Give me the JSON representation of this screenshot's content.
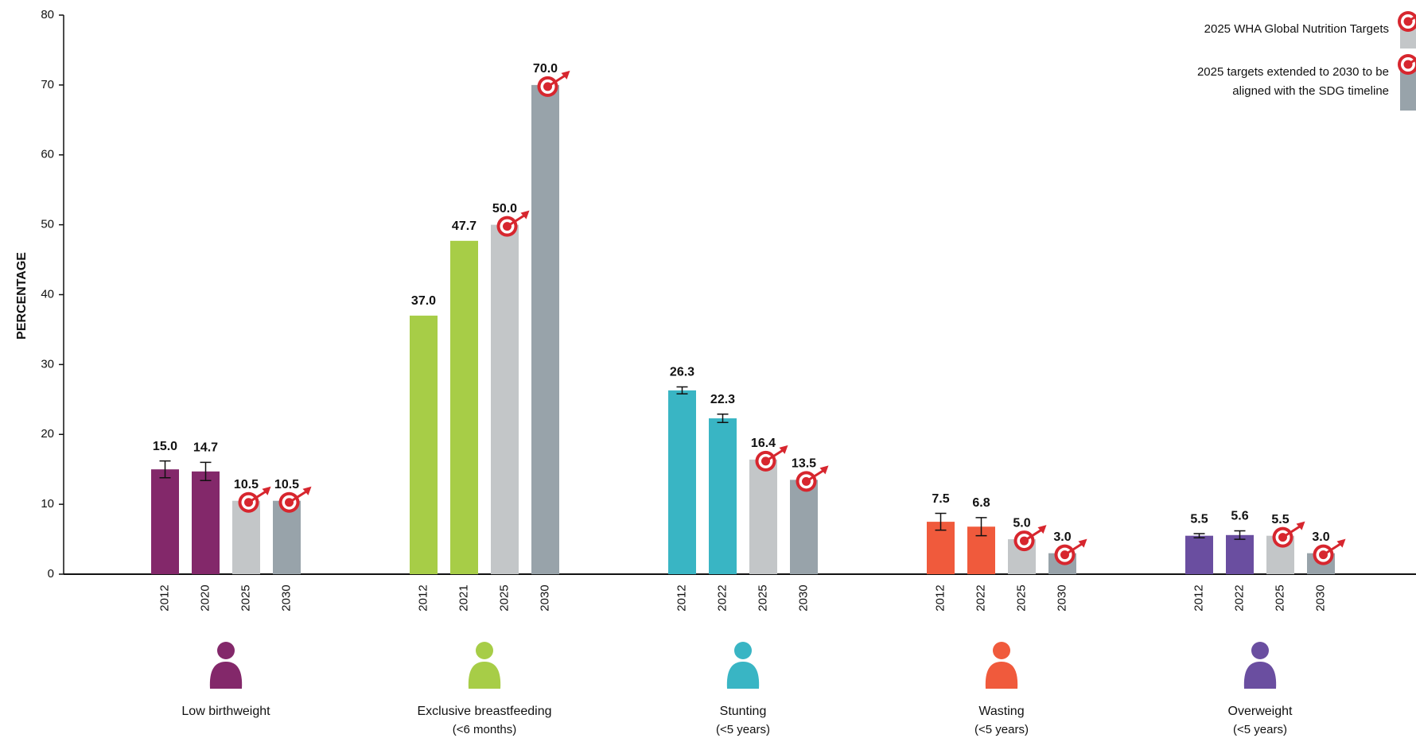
{
  "chart_data": {
    "type": "bar",
    "y_label": "PERCENTAGE",
    "ylim": [
      0,
      80
    ],
    "yticks": [
      0,
      10,
      20,
      30,
      40,
      50,
      60,
      70,
      80
    ],
    "target_label_color": "#d7262e",
    "legend": [
      {
        "name": [
          "2025 WHA Global Nutrition Targets"
        ],
        "color": "#c3c6c8"
      },
      {
        "name": [
          "2025 targets extended to 2030 to be",
          "aligned with the SDG timeline"
        ],
        "color": "#98a3aa"
      }
    ],
    "groups": [
      {
        "name": "Low birthweight",
        "categories": [
          "2012",
          "2020",
          "2025",
          "2030"
        ],
        "values": [
          15.0,
          14.7,
          10.5,
          10.5
        ],
        "value_labels": [
          "15.0",
          "14.7",
          "10.5",
          "10.5"
        ],
        "errors": [
          1.2,
          1.3,
          null,
          null
        ],
        "colors": [
          "#83286a",
          "#83286a",
          "#c3c6c8",
          "#98a3aa"
        ]
      },
      {
        "name": "Exclusive breastfeeding",
        "note": "(<6 months)",
        "categories": [
          "2012",
          "2021",
          "2025",
          "2030"
        ],
        "values": [
          37.0,
          47.7,
          50.0,
          70.0
        ],
        "value_labels": [
          "37.0",
          "47.7",
          "50.0",
          "70.0"
        ],
        "errors": [
          null,
          null,
          null,
          null
        ],
        "colors": [
          "#a7cd47",
          "#a7cd47",
          "#c3c6c8",
          "#98a3aa"
        ]
      },
      {
        "name": "Stunting",
        "note": "(<5 years)",
        "categories": [
          "2012",
          "2022",
          "2025",
          "2030"
        ],
        "values": [
          26.3,
          22.3,
          16.4,
          13.5
        ],
        "value_labels": [
          "26.3",
          "22.3",
          "16.4",
          "13.5"
        ],
        "errors": [
          0.5,
          0.6,
          null,
          null
        ],
        "colors": [
          "#39b5c4",
          "#39b5c4",
          "#c3c6c8",
          "#98a3aa"
        ]
      },
      {
        "name": "Wasting",
        "note": "(<5 years)",
        "categories": [
          "2012",
          "2022",
          "2025",
          "2030"
        ],
        "values": [
          7.5,
          6.8,
          5.0,
          3.0
        ],
        "value_labels": [
          "7.5",
          "6.8",
          "5.0",
          "3.0"
        ],
        "errors": [
          1.2,
          1.3,
          null,
          null
        ],
        "colors": [
          "#f05a3c",
          "#f05a3c",
          "#c3c6c8",
          "#98a3aa"
        ]
      },
      {
        "name": "Overweight",
        "note": "(<5 years)",
        "categories": [
          "2012",
          "2022",
          "2025",
          "2030"
        ],
        "values": [
          5.5,
          5.6,
          5.5,
          3.0
        ],
        "value_labels": [
          "5.5",
          "5.6",
          "5.5",
          "3.0"
        ],
        "errors": [
          0.3,
          0.6,
          null,
          null
        ],
        "colors": [
          "#6a4ea0",
          "#6a4ea0",
          "#c3c6c8",
          "#98a3aa"
        ]
      }
    ]
  }
}
